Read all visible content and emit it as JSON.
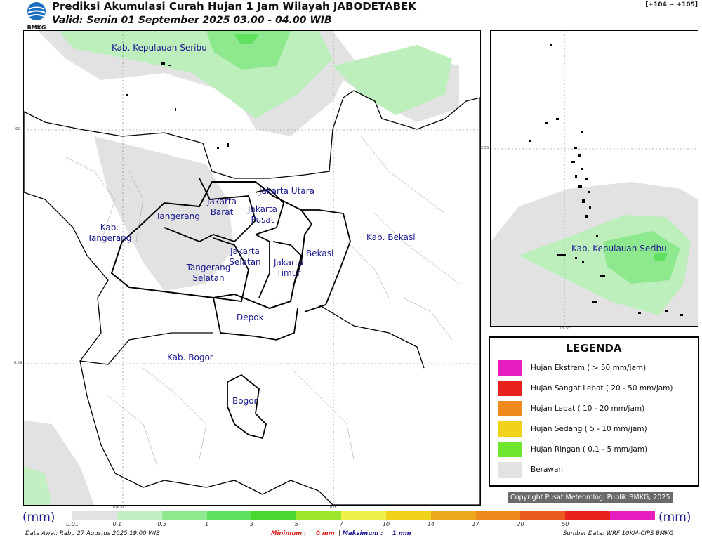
{
  "header": {
    "logo_text": "BMKG",
    "title": "Prediksi Akumulasi Curah Hujan 1 Jam Wilayah JABODETABEK",
    "subtitle": "Valid: Senin 01 September 2025 03.00 - 04.00 WIB",
    "range": "[+104 ~ +105]"
  },
  "main_map": {
    "labels": {
      "seribu": "Kab. Kepulauan Seribu",
      "jakut": "Jakarta Utara",
      "jakbar": "Jakarta Barat",
      "jakpus": "Jakarta Pusat",
      "tangerang": "Tangerang",
      "kab_tangerang": "Kab. Tangerang",
      "jaksel": "Jakarta Selatan",
      "jaktim": "Jakarta Timur",
      "bekasi": "Bekasi",
      "kab_bekasi": "Kab. Bekasi",
      "tangsel": "Tangerang Selatan",
      "depok": "Depok",
      "kab_bogor": "Kab. Bogor",
      "bogor": "Bogor"
    },
    "grid": {
      "lat1": "6S",
      "lat2": "6.5S",
      "lon1": "106.5E",
      "lon2": "107E"
    }
  },
  "inset_map": {
    "label": "Kab. Kepulauan Seribu",
    "lat": "5.5S",
    "lon": "106.5E"
  },
  "legend": {
    "title": "LEGENDA",
    "items": [
      {
        "label": "Hujan Ekstrem ( > 50 mm/jam)",
        "color": "#e61ec0"
      },
      {
        "label": "Hujan Sangat Lebat ( 20 - 50 mm/jam)",
        "color": "#e8231e"
      },
      {
        "label": "Hujan Lebat ( 10 - 20 mm/jam)",
        "color": "#ef8a1e"
      },
      {
        "label": "Hujan Sedang ( 5 - 10 mm/jam)",
        "color": "#f0d21a"
      },
      {
        "label": "Hujan Ringan ( 0,1 - 5 mm/jam)",
        "color": "#6ee62d"
      },
      {
        "label": "Berawan",
        "color": "#e2e2e2"
      }
    ]
  },
  "copyright": "Copyright Pusat Meteorologi Publik BMKG, 2025",
  "scale": {
    "unit_left": "(mm)",
    "unit_right": "(mm)",
    "ticks": [
      "0.01",
      "0.1",
      "0.5",
      "1",
      "3",
      "5",
      "7",
      "10",
      "14",
      "17",
      "20",
      "50"
    ],
    "colors": [
      "#e2e2e2",
      "#c2f0c2",
      "#8ee88e",
      "#5fe05f",
      "#48d830",
      "#9be62d",
      "#ecf24a",
      "#f0d21a",
      "#eda71e",
      "#ef8a1e",
      "#ea5a1e",
      "#e8231e",
      "#e61ec0"
    ]
  },
  "footer": {
    "data_awal": "Data Awal: Rabu 27 Agustus 2025 19.00 WIB",
    "minimum_label": "Minimum :",
    "minimum_value": "0 mm",
    "separator": "|",
    "maximum_label": "Maksimum :",
    "maximum_value": "1 mm",
    "source": "Sumber Data: WRF 10KM-CIPS BMKG"
  }
}
